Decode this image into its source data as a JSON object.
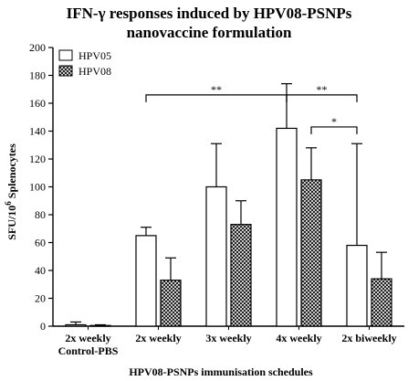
{
  "chart_data": {
    "type": "bar",
    "title": [
      "IFN-γ responses induced by HPV08-PSNPs",
      "nanovaccine formulation"
    ],
    "xlabel": "HPV08-PSNPs immunisation schedules",
    "ylabel": {
      "main": "SFU/10",
      "sup": "6",
      "rest": " Splenocytes"
    },
    "ylim": [
      0,
      200
    ],
    "yticks": [
      "0",
      "20",
      "40",
      "60",
      "80",
      "100",
      "120",
      "140",
      "160",
      "180",
      "200"
    ],
    "categories": [
      [
        "2x weekly",
        "Control-PBS"
      ],
      [
        "2x weekly"
      ],
      [
        "3x weekly"
      ],
      [
        "4x weekly"
      ],
      [
        "2x biweekly"
      ]
    ],
    "series": [
      {
        "name": "HPV05",
        "pattern": "white",
        "values": [
          1,
          65,
          100,
          142,
          58
        ],
        "errors": [
          2,
          6,
          31,
          32,
          73
        ]
      },
      {
        "name": "HPV08",
        "pattern": "crosshatch",
        "values": [
          0.5,
          33,
          73,
          105,
          34
        ],
        "errors": [
          0.5,
          16,
          17,
          23,
          19
        ]
      }
    ],
    "legend_position": "top-left",
    "significance": [
      {
        "label": "**",
        "from": [
          1,
          "HPV05"
        ],
        "to": [
          3,
          "HPV05"
        ],
        "y": 166
      },
      {
        "label": "**",
        "from": [
          3,
          "HPV05"
        ],
        "to": [
          4,
          "HPV05"
        ],
        "y": 166
      },
      {
        "label": "*",
        "from": [
          3,
          "HPV08"
        ],
        "to": [
          4,
          "HPV05"
        ],
        "y": 143
      }
    ]
  }
}
